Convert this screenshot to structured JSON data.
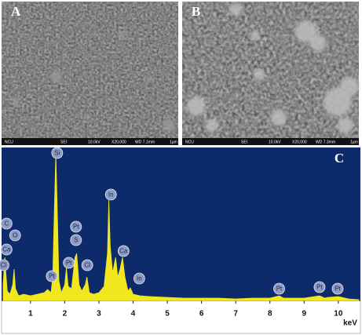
{
  "panels": [
    {
      "label": "A",
      "footer": [
        "NCU",
        "SEI",
        "10.0kV",
        "X20,000",
        "WD 7.1mm",
        "1µm"
      ]
    },
    {
      "label": "B",
      "footer": [
        "NCU",
        "SEI",
        "10.0kV",
        "X20,000",
        "WD 7.3mm",
        "1µm"
      ]
    }
  ],
  "chart_data": {
    "type": "area",
    "label": "C",
    "x_label": "keV",
    "color": "#f2e61c",
    "background": "#0d2b6b",
    "x": [
      0.2,
      0.25,
      0.28,
      0.32,
      0.4,
      0.48,
      0.52,
      0.56,
      0.65,
      0.8,
      1.0,
      1.2,
      1.4,
      1.5,
      1.6,
      1.65,
      1.7,
      1.74,
      1.78,
      1.83,
      1.9,
      2.0,
      2.05,
      2.1,
      2.2,
      2.3,
      2.35,
      2.42,
      2.5,
      2.6,
      2.65,
      2.72,
      2.85,
      3.0,
      3.15,
      3.25,
      3.29,
      3.33,
      3.4,
      3.49,
      3.55,
      3.62,
      3.69,
      3.76,
      3.85,
      3.92,
      4.0,
      4.2,
      4.5,
      5.0,
      5.5,
      6.0,
      6.5,
      7.0,
      7.5,
      8.0,
      8.27,
      8.4,
      9.0,
      9.45,
      9.6,
      9.7,
      10.0,
      10.3,
      10.6
    ],
    "values": [
      20,
      55,
      35,
      12,
      8,
      20,
      40,
      15,
      6,
      8,
      6,
      8,
      10,
      14,
      10,
      30,
      120,
      188,
      120,
      25,
      10,
      20,
      42,
      18,
      15,
      55,
      60,
      20,
      12,
      20,
      30,
      10,
      8,
      10,
      18,
      60,
      128,
      70,
      35,
      55,
      30,
      40,
      55,
      30,
      12,
      16,
      8,
      6,
      5,
      4,
      3,
      3,
      3,
      2,
      3,
      3,
      6,
      3,
      3,
      6,
      3,
      4,
      5,
      2,
      1
    ],
    "xlim": [
      0.2,
      10.6
    ],
    "ylim": [
      0,
      190
    ],
    "xticks": [
      1,
      2,
      3,
      4,
      5,
      6,
      7,
      8,
      9,
      10
    ],
    "annotations": [
      {
        "text": "Si",
        "x": 1.78,
        "y": 188
      },
      {
        "text": "C",
        "x": 0.3,
        "y": 98
      },
      {
        "text": "O",
        "x": 0.55,
        "y": 83
      },
      {
        "text": "Ca",
        "x": 0.3,
        "y": 65
      },
      {
        "text": "Cl",
        "x": 0.21,
        "y": 45
      },
      {
        "text": "Pt",
        "x": 1.62,
        "y": 31
      },
      {
        "text": "Pt",
        "x": 2.12,
        "y": 48
      },
      {
        "text": "S",
        "x": 2.33,
        "y": 77
      },
      {
        "text": "Pt",
        "x": 2.33,
        "y": 94
      },
      {
        "text": "Cl",
        "x": 2.66,
        "y": 45
      },
      {
        "text": "In",
        "x": 3.35,
        "y": 135
      },
      {
        "text": "Ca",
        "x": 3.72,
        "y": 63
      },
      {
        "text": "In",
        "x": 4.18,
        "y": 28
      },
      {
        "text": "Pt",
        "x": 8.27,
        "y": 15
      },
      {
        "text": "Pt",
        "x": 9.45,
        "y": 17
      },
      {
        "text": "Pt",
        "x": 9.98,
        "y": 15
      }
    ]
  }
}
